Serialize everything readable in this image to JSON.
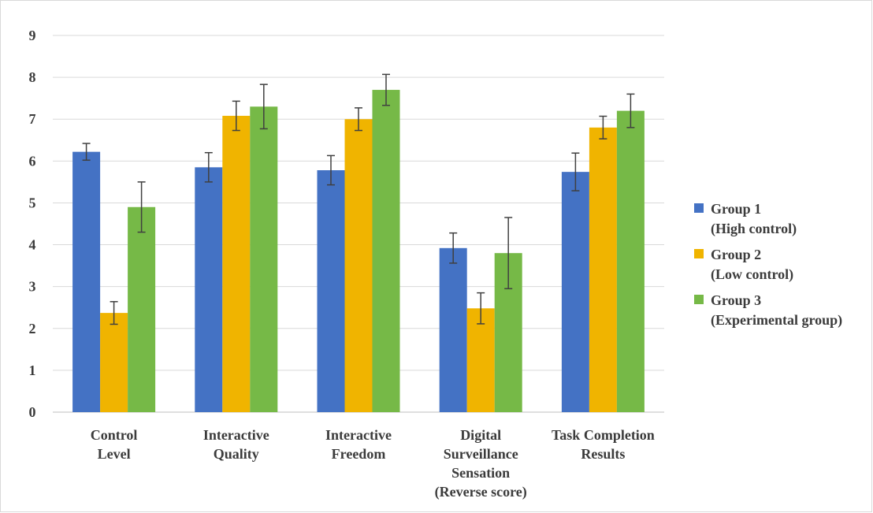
{
  "chart_data": {
    "type": "bar",
    "title": "",
    "xlabel": "",
    "ylabel": "",
    "ylim": [
      0,
      9
    ],
    "yticks": [
      0,
      1,
      2,
      3,
      4,
      5,
      6,
      7,
      8,
      9
    ],
    "grid": true,
    "legend_position": "right",
    "categories": [
      [
        "Control",
        "Level"
      ],
      [
        "Interactive",
        "Quality"
      ],
      [
        "Interactive",
        "Freedom"
      ],
      [
        "Digital",
        "Surveillance",
        "Sensation",
        "(Reverse score)"
      ],
      [
        "Task Completion",
        "Results"
      ]
    ],
    "series": [
      {
        "name": [
          "Group 1",
          "(High control)"
        ],
        "color": "#4472c4",
        "values": [
          6.22,
          5.85,
          5.78,
          3.92,
          5.74
        ],
        "error": [
          0.2,
          0.35,
          0.35,
          0.36,
          0.45
        ]
      },
      {
        "name": [
          "Group 2",
          "(Low control)"
        ],
        "color": "#f0b400",
        "values": [
          2.37,
          7.08,
          7.0,
          2.48,
          6.8
        ],
        "error": [
          0.27,
          0.35,
          0.27,
          0.37,
          0.27
        ]
      },
      {
        "name": [
          "Group 3",
          "(Experimental group)"
        ],
        "color": "#76b947",
        "values": [
          4.9,
          7.3,
          7.7,
          3.8,
          7.2
        ],
        "error": [
          0.6,
          0.53,
          0.37,
          0.85,
          0.4
        ]
      }
    ]
  }
}
